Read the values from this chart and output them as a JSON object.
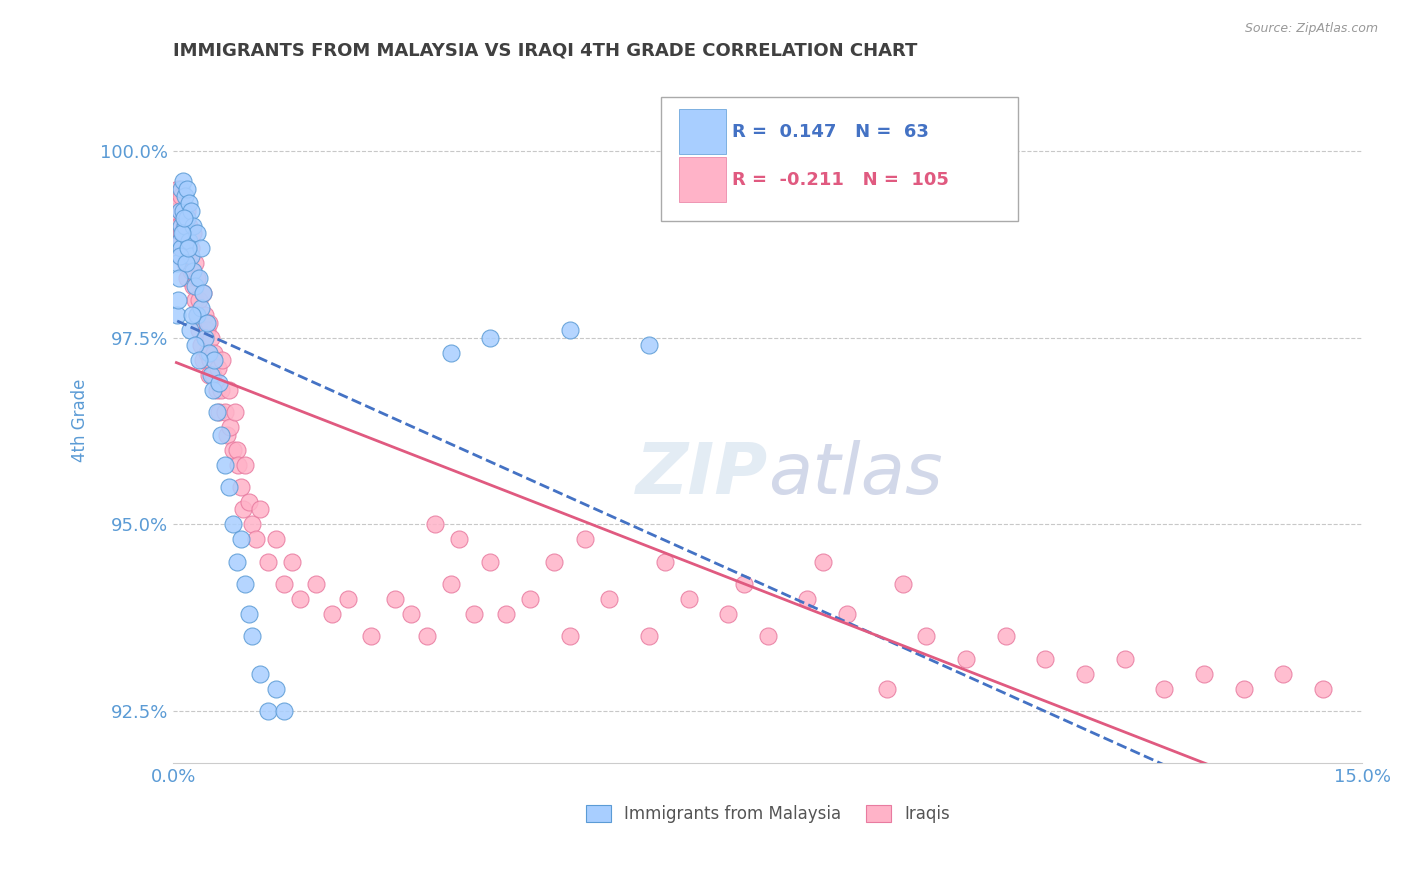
{
  "title": "IMMIGRANTS FROM MALAYSIA VS IRAQI 4TH GRADE CORRELATION CHART",
  "source_text": "Source: ZipAtlas.com",
  "ylabel": "4th Grade",
  "xlim": [
    0.0,
    15.0
  ],
  "ylim": [
    91.8,
    101.0
  ],
  "x_ticks": [
    0.0,
    15.0
  ],
  "x_tick_labels": [
    "0.0%",
    "15.0%"
  ],
  "y_ticks": [
    92.5,
    95.0,
    97.5,
    100.0
  ],
  "y_tick_labels": [
    "92.5%",
    "95.0%",
    "97.5%",
    "100.0%"
  ],
  "malaysia_color": "#A8CEFF",
  "iraq_color": "#FFB3C8",
  "malaysia_edge_color": "#5B9BD5",
  "iraq_edge_color": "#E87BA0",
  "trend_malaysia_color": "#4472C4",
  "trend_iraq_color": "#E05A80",
  "R_malaysia": 0.147,
  "N_malaysia": 63,
  "R_iraq": -0.211,
  "N_iraq": 105,
  "background_color": "#FFFFFF",
  "grid_color": "#C8C8C8",
  "axis_color": "#5B9BD5",
  "title_color": "#404040",
  "legend_label_malaysia": "Immigrants from Malaysia",
  "legend_label_iraq": "Iraqis",
  "malaysia_scatter_x": [
    0.05,
    0.05,
    0.08,
    0.08,
    0.1,
    0.1,
    0.1,
    0.12,
    0.12,
    0.12,
    0.15,
    0.15,
    0.18,
    0.18,
    0.2,
    0.2,
    0.22,
    0.22,
    0.25,
    0.25,
    0.28,
    0.3,
    0.3,
    0.32,
    0.35,
    0.35,
    0.38,
    0.4,
    0.42,
    0.45,
    0.48,
    0.5,
    0.52,
    0.55,
    0.58,
    0.6,
    0.65,
    0.7,
    0.75,
    0.8,
    0.85,
    0.9,
    0.95,
    1.0,
    1.1,
    1.2,
    1.3,
    1.4,
    0.06,
    0.07,
    0.09,
    0.11,
    0.13,
    0.16,
    0.19,
    0.21,
    0.24,
    0.27,
    0.33,
    3.5,
    4.0,
    5.0,
    6.0
  ],
  "malaysia_scatter_y": [
    97.8,
    98.5,
    99.2,
    98.8,
    99.5,
    99.0,
    98.7,
    99.6,
    99.2,
    98.9,
    99.4,
    99.0,
    99.5,
    99.1,
    99.3,
    98.8,
    99.2,
    98.6,
    99.0,
    98.4,
    98.2,
    98.9,
    97.8,
    98.3,
    98.7,
    97.9,
    98.1,
    97.5,
    97.7,
    97.3,
    97.0,
    96.8,
    97.2,
    96.5,
    96.9,
    96.2,
    95.8,
    95.5,
    95.0,
    94.5,
    94.8,
    94.2,
    93.8,
    93.5,
    93.0,
    92.5,
    92.8,
    92.5,
    98.0,
    98.3,
    98.6,
    98.9,
    99.1,
    98.5,
    98.7,
    97.6,
    97.8,
    97.4,
    97.2,
    97.3,
    97.5,
    97.6,
    97.4
  ],
  "iraq_scatter_x": [
    0.04,
    0.05,
    0.06,
    0.07,
    0.08,
    0.09,
    0.1,
    0.1,
    0.12,
    0.13,
    0.14,
    0.15,
    0.16,
    0.17,
    0.18,
    0.2,
    0.2,
    0.22,
    0.23,
    0.25,
    0.25,
    0.27,
    0.28,
    0.3,
    0.3,
    0.32,
    0.33,
    0.35,
    0.37,
    0.38,
    0.4,
    0.4,
    0.42,
    0.43,
    0.45,
    0.45,
    0.47,
    0.48,
    0.5,
    0.52,
    0.55,
    0.57,
    0.58,
    0.6,
    0.62,
    0.65,
    0.68,
    0.7,
    0.72,
    0.75,
    0.78,
    0.8,
    0.82,
    0.85,
    0.88,
    0.9,
    0.95,
    1.0,
    1.05,
    1.1,
    1.2,
    1.3,
    1.4,
    1.5,
    1.6,
    1.8,
    2.0,
    2.2,
    2.5,
    2.8,
    3.0,
    3.2,
    3.5,
    3.8,
    4.0,
    4.2,
    4.5,
    5.0,
    5.5,
    6.0,
    6.5,
    7.0,
    7.5,
    8.0,
    8.5,
    9.0,
    9.5,
    10.0,
    10.5,
    11.0,
    11.5,
    12.0,
    12.5,
    13.0,
    13.5,
    14.0,
    14.5,
    3.3,
    3.6,
    4.8,
    5.2,
    6.2,
    7.2,
    8.2,
    9.2
  ],
  "iraq_scatter_y": [
    99.2,
    98.8,
    99.5,
    99.0,
    99.3,
    98.6,
    99.4,
    98.9,
    99.1,
    98.7,
    99.0,
    98.5,
    98.8,
    99.2,
    98.3,
    99.0,
    98.6,
    98.4,
    98.7,
    98.2,
    98.9,
    98.0,
    98.5,
    97.8,
    98.3,
    97.6,
    98.0,
    97.4,
    98.1,
    97.2,
    97.8,
    97.5,
    97.3,
    97.6,
    97.0,
    97.7,
    97.2,
    97.5,
    97.0,
    97.3,
    96.8,
    97.1,
    96.5,
    96.8,
    97.2,
    96.5,
    96.2,
    96.8,
    96.3,
    96.0,
    96.5,
    96.0,
    95.8,
    95.5,
    95.2,
    95.8,
    95.3,
    95.0,
    94.8,
    95.2,
    94.5,
    94.8,
    94.2,
    94.5,
    94.0,
    94.2,
    93.8,
    94.0,
    93.5,
    94.0,
    93.8,
    93.5,
    94.2,
    93.8,
    94.5,
    93.8,
    94.0,
    93.5,
    94.0,
    93.5,
    94.0,
    93.8,
    93.5,
    94.0,
    93.8,
    92.8,
    93.5,
    93.2,
    93.5,
    93.2,
    93.0,
    93.2,
    92.8,
    93.0,
    92.8,
    93.0,
    92.8,
    95.0,
    94.8,
    94.5,
    94.8,
    94.5,
    94.2,
    94.5,
    94.2
  ]
}
